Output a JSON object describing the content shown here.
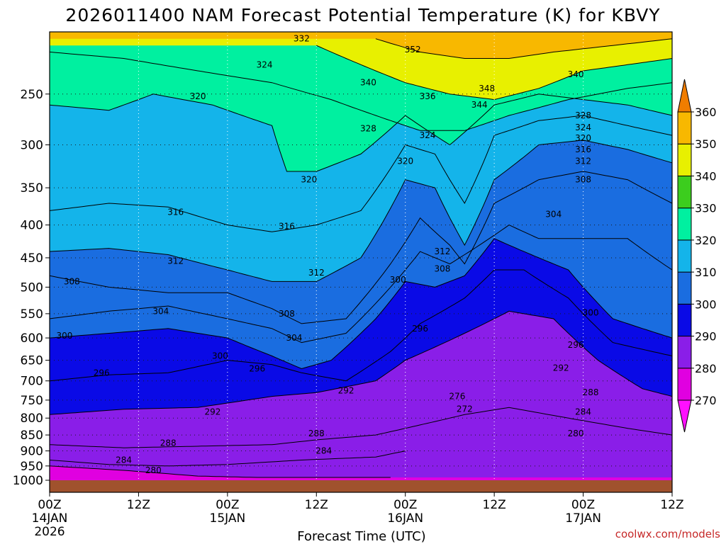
{
  "header": {
    "title": "2026011400 NAM Forecast Potential Temperature (K) for KBVY"
  },
  "chart_data": {
    "type": "heatmap",
    "title": "2026011400 NAM Forecast Potential Temperature (K) for KBVY",
    "xlabel": "Forecast Time (UTC)",
    "ylabel": "",
    "grid": true,
    "y_scale": "log",
    "y_reversed": true,
    "ylim": [
      1000,
      200
    ],
    "x_range_hours": [
      0,
      84
    ],
    "y_ticks": [
      250,
      300,
      350,
      400,
      450,
      500,
      550,
      600,
      650,
      700,
      750,
      800,
      850,
      900,
      950,
      1000
    ],
    "x_ticks": [
      {
        "hour": 0,
        "label": "00Z",
        "date": "14JAN",
        "year": "2026"
      },
      {
        "hour": 12,
        "label": "12Z",
        "date": "",
        "year": ""
      },
      {
        "hour": 24,
        "label": "00Z",
        "date": "15JAN",
        "year": ""
      },
      {
        "hour": 36,
        "label": "12Z",
        "date": "",
        "year": ""
      },
      {
        "hour": 48,
        "label": "00Z",
        "date": "16JAN",
        "year": ""
      },
      {
        "hour": 60,
        "label": "12Z",
        "date": "",
        "year": ""
      },
      {
        "hour": 72,
        "label": "00Z",
        "date": "17JAN",
        "year": ""
      },
      {
        "hour": 84,
        "label": "12Z",
        "date": "",
        "year": ""
      }
    ],
    "colorbar": {
      "labels": [
        270,
        280,
        290,
        300,
        310,
        320,
        330,
        340,
        350,
        360
      ],
      "bands": [
        {
          "min": 270,
          "max": 280,
          "color": "#e000e0"
        },
        {
          "min": 280,
          "max": 290,
          "color": "#8a1ee8"
        },
        {
          "min": 290,
          "max": 300,
          "color": "#0a0ae6"
        },
        {
          "min": 300,
          "max": 310,
          "color": "#1a6de0"
        },
        {
          "min": 310,
          "max": 320,
          "color": "#14b4ea"
        },
        {
          "min": 320,
          "max": 330,
          "color": "#00f0a0"
        },
        {
          "min": 330,
          "max": 340,
          "color": "#3ccd1e"
        },
        {
          "min": 340,
          "max": 350,
          "color": "#e8f000"
        },
        {
          "min": 350,
          "max": 360,
          "color": "#f8b800"
        }
      ]
    },
    "contour_interval": 2,
    "isentropes": [
      {
        "theta": 280,
        "points": [
          [
            0,
            950
          ],
          [
            10,
            965
          ],
          [
            20,
            985
          ],
          [
            28,
            990
          ],
          [
            36,
            990
          ],
          [
            44,
            990
          ],
          [
            46,
            990
          ]
        ]
      },
      {
        "theta": 284,
        "points": [
          [
            0,
            930
          ],
          [
            8,
            945
          ],
          [
            16,
            950
          ],
          [
            24,
            945
          ],
          [
            34,
            930
          ],
          [
            44,
            920
          ],
          [
            48,
            900
          ]
        ]
      },
      {
        "theta": 288,
        "points": [
          [
            0,
            880
          ],
          [
            10,
            890
          ],
          [
            20,
            885
          ],
          [
            30,
            880
          ],
          [
            36,
            865
          ],
          [
            44,
            850
          ],
          [
            48,
            830
          ],
          [
            56,
            790
          ],
          [
            62,
            770
          ],
          [
            70,
            800
          ],
          [
            78,
            830
          ],
          [
            84,
            850
          ]
        ]
      },
      {
        "theta": 292,
        "points": [
          [
            0,
            790
          ],
          [
            10,
            775
          ],
          [
            20,
            770
          ],
          [
            30,
            740
          ],
          [
            36,
            730
          ],
          [
            44,
            700
          ],
          [
            48,
            650
          ],
          [
            56,
            590
          ],
          [
            62,
            545
          ],
          [
            68,
            560
          ],
          [
            74,
            650
          ],
          [
            80,
            720
          ],
          [
            84,
            740
          ]
        ]
      },
      {
        "theta": 296,
        "points": [
          [
            0,
            700
          ],
          [
            8,
            685
          ],
          [
            16,
            680
          ],
          [
            24,
            650
          ],
          [
            30,
            660
          ],
          [
            34,
            680
          ],
          [
            40,
            700
          ],
          [
            46,
            630
          ],
          [
            50,
            570
          ],
          [
            56,
            520
          ],
          [
            60,
            470
          ],
          [
            64,
            470
          ],
          [
            70,
            520
          ],
          [
            76,
            610
          ],
          [
            84,
            640
          ]
        ]
      },
      {
        "theta": 300,
        "points": [
          [
            0,
            600
          ],
          [
            8,
            590
          ],
          [
            16,
            580
          ],
          [
            24,
            600
          ],
          [
            30,
            640
          ],
          [
            34,
            670
          ],
          [
            38,
            650
          ],
          [
            44,
            560
          ],
          [
            48,
            490
          ],
          [
            52,
            500
          ],
          [
            56,
            480
          ],
          [
            60,
            420
          ],
          [
            64,
            440
          ],
          [
            70,
            470
          ],
          [
            76,
            560
          ],
          [
            84,
            600
          ]
        ]
      },
      {
        "theta": 304,
        "points": [
          [
            0,
            560
          ],
          [
            8,
            545
          ],
          [
            16,
            535
          ],
          [
            24,
            560
          ],
          [
            30,
            580
          ],
          [
            34,
            610
          ],
          [
            40,
            590
          ],
          [
            46,
            500
          ],
          [
            50,
            440
          ],
          [
            54,
            460
          ],
          [
            58,
            430
          ],
          [
            62,
            400
          ],
          [
            66,
            420
          ],
          [
            72,
            420
          ],
          [
            78,
            420
          ],
          [
            84,
            470
          ]
        ]
      },
      {
        "theta": 308,
        "points": [
          [
            0,
            480
          ],
          [
            8,
            500
          ],
          [
            16,
            510
          ],
          [
            24,
            510
          ],
          [
            30,
            540
          ],
          [
            34,
            570
          ],
          [
            40,
            560
          ],
          [
            46,
            460
          ],
          [
            50,
            390
          ],
          [
            54,
            430
          ],
          [
            56,
            460
          ],
          [
            60,
            370
          ],
          [
            66,
            340
          ],
          [
            72,
            330
          ],
          [
            78,
            340
          ],
          [
            84,
            370
          ]
        ]
      },
      {
        "theta": 312,
        "points": [
          [
            0,
            440
          ],
          [
            8,
            435
          ],
          [
            16,
            445
          ],
          [
            24,
            470
          ],
          [
            30,
            490
          ],
          [
            36,
            490
          ],
          [
            42,
            450
          ],
          [
            48,
            340
          ],
          [
            52,
            350
          ],
          [
            56,
            430
          ],
          [
            60,
            340
          ],
          [
            66,
            300
          ],
          [
            72,
            295
          ],
          [
            78,
            305
          ],
          [
            84,
            320
          ]
        ]
      },
      {
        "theta": 316,
        "points": [
          [
            0,
            380
          ],
          [
            8,
            370
          ],
          [
            16,
            375
          ],
          [
            24,
            400
          ],
          [
            30,
            410
          ],
          [
            36,
            400
          ],
          [
            42,
            380
          ],
          [
            48,
            300
          ],
          [
            52,
            310
          ],
          [
            56,
            370
          ],
          [
            60,
            290
          ],
          [
            66,
            275
          ],
          [
            72,
            270
          ],
          [
            78,
            280
          ],
          [
            84,
            290
          ]
        ]
      },
      {
        "theta": 320,
        "points": [
          [
            0,
            260
          ],
          [
            8,
            265
          ],
          [
            14,
            250
          ],
          [
            22,
            260
          ],
          [
            30,
            280
          ],
          [
            32,
            330
          ],
          [
            36,
            330
          ],
          [
            42,
            310
          ],
          [
            48,
            270
          ],
          [
            54,
            300
          ],
          [
            60,
            260
          ],
          [
            66,
            250
          ],
          [
            72,
            255
          ],
          [
            78,
            260
          ],
          [
            84,
            270
          ]
        ]
      },
      {
        "theta": 328,
        "points": [
          [
            0,
            215
          ],
          [
            10,
            220
          ],
          [
            20,
            230
          ],
          [
            30,
            240
          ],
          [
            38,
            255
          ],
          [
            44,
            270
          ],
          [
            50,
            285
          ],
          [
            56,
            285
          ],
          [
            62,
            270
          ],
          [
            70,
            255
          ],
          [
            78,
            245
          ],
          [
            84,
            240
          ]
        ]
      },
      {
        "theta": 340,
        "points": [
          [
            36,
            210
          ],
          [
            42,
            225
          ],
          [
            48,
            240
          ],
          [
            54,
            250
          ],
          [
            60,
            255
          ],
          [
            66,
            245
          ],
          [
            72,
            230
          ],
          [
            78,
            225
          ],
          [
            84,
            220
          ]
        ]
      },
      {
        "theta": 352,
        "points": [
          [
            44,
            205
          ],
          [
            50,
            215
          ],
          [
            56,
            220
          ],
          [
            62,
            220
          ],
          [
            68,
            215
          ],
          [
            76,
            210
          ],
          [
            84,
            205
          ]
        ]
      }
    ],
    "contour_labels": [
      {
        "text": "332",
        "hour": 34,
        "p": 205
      },
      {
        "text": "324",
        "hour": 29,
        "p": 225
      },
      {
        "text": "320",
        "hour": 20,
        "p": 252
      },
      {
        "text": "352",
        "hour": 49,
        "p": 213
      },
      {
        "text": "340",
        "hour": 43,
        "p": 240
      },
      {
        "text": "336",
        "hour": 51,
        "p": 252
      },
      {
        "text": "348",
        "hour": 59,
        "p": 245
      },
      {
        "text": "344",
        "hour": 58,
        "p": 260
      },
      {
        "text": "340",
        "hour": 71,
        "p": 233
      },
      {
        "text": "328",
        "hour": 43,
        "p": 283
      },
      {
        "text": "324",
        "hour": 51,
        "p": 290
      },
      {
        "text": "328",
        "hour": 72,
        "p": 270
      },
      {
        "text": "324",
        "hour": 72,
        "p": 282
      },
      {
        "text": "320",
        "hour": 72,
        "p": 293
      },
      {
        "text": "316",
        "hour": 72,
        "p": 305
      },
      {
        "text": "312",
        "hour": 72,
        "p": 318
      },
      {
        "text": "320",
        "hour": 48,
        "p": 318
      },
      {
        "text": "320",
        "hour": 35,
        "p": 340
      },
      {
        "text": "308",
        "hour": 72,
        "p": 340
      },
      {
        "text": "316",
        "hour": 17,
        "p": 382
      },
      {
        "text": "316",
        "hour": 32,
        "p": 402
      },
      {
        "text": "304",
        "hour": 68,
        "p": 385
      },
      {
        "text": "312",
        "hour": 53,
        "p": 440
      },
      {
        "text": "312",
        "hour": 17,
        "p": 455
      },
      {
        "text": "312",
        "hour": 36,
        "p": 475
      },
      {
        "text": "308",
        "hour": 53,
        "p": 468
      },
      {
        "text": "300",
        "hour": 47,
        "p": 487
      },
      {
        "text": "308",
        "hour": 3,
        "p": 490
      },
      {
        "text": "304",
        "hour": 15,
        "p": 545
      },
      {
        "text": "308",
        "hour": 32,
        "p": 550
      },
      {
        "text": "300",
        "hour": 73,
        "p": 548
      },
      {
        "text": "296",
        "hour": 50,
        "p": 580
      },
      {
        "text": "304",
        "hour": 33,
        "p": 600
      },
      {
        "text": "300",
        "hour": 2,
        "p": 595
      },
      {
        "text": "296",
        "hour": 71,
        "p": 615
      },
      {
        "text": "300",
        "hour": 23,
        "p": 640
      },
      {
        "text": "296",
        "hour": 28,
        "p": 670
      },
      {
        "text": "296",
        "hour": 7,
        "p": 680
      },
      {
        "text": "292",
        "hour": 69,
        "p": 668
      },
      {
        "text": "292",
        "hour": 40,
        "p": 725
      },
      {
        "text": "288",
        "hour": 73,
        "p": 730
      },
      {
        "text": "276",
        "hour": 55,
        "p": 740
      },
      {
        "text": "272",
        "hour": 56,
        "p": 775
      },
      {
        "text": "292",
        "hour": 22,
        "p": 782
      },
      {
        "text": "284",
        "hour": 72,
        "p": 782
      },
      {
        "text": "280",
        "hour": 71,
        "p": 845
      },
      {
        "text": "288",
        "hour": 36,
        "p": 845
      },
      {
        "text": "288",
        "hour": 16,
        "p": 875
      },
      {
        "text": "284",
        "hour": 37,
        "p": 900
      },
      {
        "text": "284",
        "hour": 10,
        "p": 930
      },
      {
        "text": "280",
        "hour": 14,
        "p": 965
      }
    ],
    "colors": {
      "background": "#ffffff",
      "ground": "#a0522d",
      "contour": "#000000",
      "grid": "#ffffff"
    }
  },
  "footer": {
    "credit": "coolwx.com/models",
    "xlabel": "Forecast Time (UTC)"
  }
}
